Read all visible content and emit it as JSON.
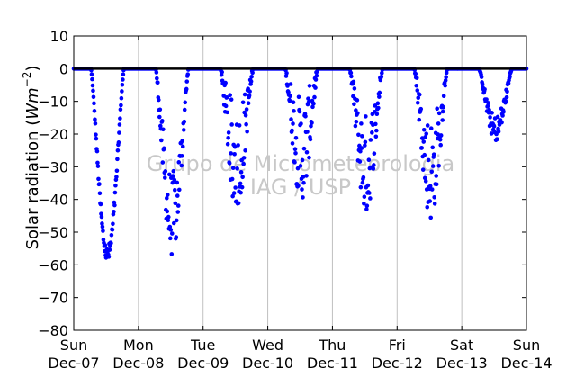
{
  "chart_data": {
    "type": "scatter",
    "title": "",
    "xlabel": "",
    "ylabel": "Solar radiation (W m⁻²)",
    "ylabel_main": "Solar radiation (",
    "ylabel_unit": "Wm",
    "ylabel_exp": "−2",
    "ylabel_close": ")",
    "ylim": [
      -80,
      10
    ],
    "yticks": [
      10,
      0,
      -10,
      -20,
      -30,
      -40,
      -50,
      -60,
      -70,
      -80
    ],
    "ytick_labels": [
      "10",
      "0",
      "−10",
      "−20",
      "−30",
      "−40",
      "−50",
      "−60",
      "−70",
      "−80"
    ],
    "xlim": [
      0,
      7
    ],
    "xticks": [
      {
        "day": "Sun",
        "date": "Dec-07"
      },
      {
        "day": "Mon",
        "date": "Dec-08"
      },
      {
        "day": "Tue",
        "date": "Dec-09"
      },
      {
        "day": "Wed",
        "date": "Dec-10"
      },
      {
        "day": "Thu",
        "date": "Dec-11"
      },
      {
        "day": "Fri",
        "date": "Dec-12"
      },
      {
        "day": "Sat",
        "date": "Dec-13"
      },
      {
        "day": "Sun",
        "date": "Dec-14"
      }
    ],
    "grid": "vertical",
    "zero_line": true,
    "marker_color": "#0000ff",
    "watermark": [
      "Grupo de Micrometeorologia",
      "IAG / USP"
    ],
    "daily_profiles": [
      {
        "date": "Dec-07",
        "start_hour": 6.4,
        "end_hour": 18.6,
        "peak": -59,
        "variability": 0.08
      },
      {
        "date": "Dec-08",
        "start_hour": 6.4,
        "end_hour": 18.6,
        "peak": -57,
        "variability": 0.45
      },
      {
        "date": "Dec-09",
        "start_hour": 6.4,
        "end_hour": 18.6,
        "peak": -42,
        "variability": 0.75
      },
      {
        "date": "Dec-10",
        "start_hour": 6.4,
        "end_hour": 18.6,
        "peak": -40,
        "variability": 0.8
      },
      {
        "date": "Dec-11",
        "start_hour": 6.4,
        "end_hour": 18.6,
        "peak": -44,
        "variability": 0.7
      },
      {
        "date": "Dec-12",
        "start_hour": 6.4,
        "end_hour": 18.6,
        "peak": -46,
        "variability": 0.7
      },
      {
        "date": "Dec-13",
        "start_hour": 6.4,
        "end_hour": 18.6,
        "peak": -22,
        "variability": 0.35
      }
    ]
  }
}
